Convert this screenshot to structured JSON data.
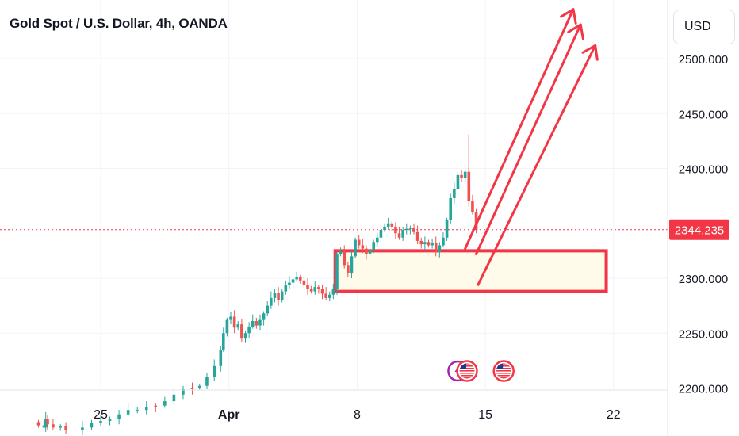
{
  "header": {
    "title": "Gold Spot / U.S. Dollar, 4h, OANDA",
    "currency_button": "USD"
  },
  "colors": {
    "up": "#26a69a",
    "down": "#ef5350",
    "drawing": "#f23645",
    "zone_fill": "#fffbea",
    "last_price_bg": "#f23645",
    "grid": "#f0f3fa"
  },
  "chart_data": {
    "type": "candlestick",
    "symbol": "Gold Spot / U.S. Dollar",
    "interval": "4h",
    "source": "OANDA",
    "currency": "USD",
    "y_ticks": [
      "2500.000",
      "2450.000",
      "2400.000",
      "2300.000",
      "2250.000",
      "2200.000"
    ],
    "ylim": [
      2197,
      2553
    ],
    "last_price": "2344.235",
    "x_ticks": [
      {
        "label": "25",
        "day": 25,
        "bold": false
      },
      {
        "label": "Apr",
        "day": 32,
        "bold": true
      },
      {
        "label": "8",
        "day": 39,
        "bold": false
      },
      {
        "label": "15",
        "day": 46,
        "bold": false
      },
      {
        "label": "22",
        "day": 53,
        "bold": false
      }
    ],
    "x_axis_note": "day index counted from March 1 (Mar 25 = 25, Apr 1 = 32)",
    "series_close": [
      [
        21.6,
        2166,
        "down"
      ],
      [
        21.9,
        2164,
        "up"
      ],
      [
        22.0,
        2172,
        "up"
      ],
      [
        22.1,
        2167,
        "down"
      ],
      [
        22.4,
        2164,
        "down"
      ],
      [
        22.8,
        2165,
        "up"
      ],
      [
        23.1,
        2162,
        "down"
      ],
      [
        24.0,
        2164,
        "up"
      ],
      [
        24.5,
        2168,
        "up"
      ],
      [
        25.0,
        2170,
        "up"
      ],
      [
        25.5,
        2172,
        "up"
      ],
      [
        26.0,
        2176,
        "up"
      ],
      [
        26.5,
        2180,
        "up"
      ],
      [
        27.0,
        2180,
        "up"
      ],
      [
        27.5,
        2183,
        "up"
      ],
      [
        28.0,
        2184,
        "down"
      ],
      [
        28.5,
        2188,
        "up"
      ],
      [
        29.0,
        2194,
        "up"
      ],
      [
        29.5,
        2199,
        "up"
      ],
      [
        30.0,
        2200,
        "down"
      ],
      [
        30.4,
        2202,
        "up"
      ],
      [
        30.8,
        2210,
        "up"
      ],
      [
        31.2,
        2220,
        "up"
      ],
      [
        31.55,
        2235,
        "up"
      ],
      [
        31.7,
        2250,
        "up"
      ],
      [
        31.9,
        2262,
        "up"
      ],
      [
        32.1,
        2265,
        "up"
      ],
      [
        32.3,
        2255,
        "down"
      ],
      [
        32.5,
        2258,
        "up"
      ],
      [
        32.7,
        2245,
        "down"
      ],
      [
        32.9,
        2250,
        "up"
      ],
      [
        33.1,
        2256,
        "up"
      ],
      [
        33.3,
        2261,
        "up"
      ],
      [
        33.5,
        2257,
        "down"
      ],
      [
        33.7,
        2262,
        "up"
      ],
      [
        33.9,
        2268,
        "up"
      ],
      [
        34.1,
        2275,
        "up"
      ],
      [
        34.3,
        2282,
        "up"
      ],
      [
        34.5,
        2287,
        "up"
      ],
      [
        34.7,
        2280,
        "down"
      ],
      [
        34.9,
        2288,
        "up"
      ],
      [
        35.1,
        2294,
        "up"
      ],
      [
        35.3,
        2296,
        "up"
      ],
      [
        35.5,
        2299,
        "up"
      ],
      [
        35.7,
        2301,
        "up"
      ],
      [
        35.9,
        2298,
        "down"
      ],
      [
        36.1,
        2294,
        "down"
      ],
      [
        36.3,
        2290,
        "down"
      ],
      [
        36.5,
        2288,
        "down"
      ],
      [
        36.7,
        2292,
        "up"
      ],
      [
        36.9,
        2290,
        "down"
      ],
      [
        37.1,
        2286,
        "down"
      ],
      [
        37.3,
        2282,
        "down"
      ],
      [
        37.5,
        2285,
        "up"
      ],
      [
        37.7,
        2290,
        "up"
      ],
      [
        37.9,
        2322,
        "up"
      ],
      [
        38.1,
        2324,
        "up"
      ],
      [
        38.3,
        2312,
        "down"
      ],
      [
        38.5,
        2305,
        "down"
      ],
      [
        38.7,
        2320,
        "up"
      ],
      [
        38.9,
        2335,
        "up"
      ],
      [
        39.1,
        2330,
        "down"
      ],
      [
        39.3,
        2327,
        "down"
      ],
      [
        39.5,
        2322,
        "down"
      ],
      [
        39.7,
        2326,
        "up"
      ],
      [
        39.9,
        2333,
        "up"
      ],
      [
        40.1,
        2337,
        "up"
      ],
      [
        40.3,
        2344,
        "up"
      ],
      [
        40.5,
        2347,
        "up"
      ],
      [
        40.7,
        2350,
        "up"
      ],
      [
        40.9,
        2347,
        "down"
      ],
      [
        41.1,
        2341,
        "down"
      ],
      [
        41.3,
        2337,
        "down"
      ],
      [
        41.5,
        2344,
        "up"
      ],
      [
        41.7,
        2345,
        "up"
      ],
      [
        41.9,
        2346,
        "up"
      ],
      [
        42.1,
        2342,
        "down"
      ],
      [
        42.3,
        2334,
        "down"
      ],
      [
        42.5,
        2331,
        "down"
      ],
      [
        42.7,
        2333,
        "up"
      ],
      [
        42.9,
        2330,
        "down"
      ],
      [
        43.1,
        2332,
        "up"
      ],
      [
        43.3,
        2324,
        "down"
      ],
      [
        43.5,
        2330,
        "up"
      ],
      [
        43.7,
        2337,
        "up"
      ],
      [
        43.9,
        2353,
        "up"
      ],
      [
        44.1,
        2373,
        "up"
      ],
      [
        44.3,
        2381,
        "up"
      ],
      [
        44.5,
        2394,
        "up"
      ],
      [
        44.7,
        2391,
        "down"
      ],
      [
        44.9,
        2397,
        "up"
      ],
      [
        45.1,
        2370,
        "down"
      ],
      [
        45.3,
        2360,
        "down"
      ],
      [
        45.5,
        2344,
        "down"
      ]
    ],
    "drawings": {
      "zone": {
        "type": "rectangle",
        "x_from": 37.8,
        "x_to": 52.6,
        "y_top": 2325,
        "y_bottom": 2288
      },
      "arrows": [
        {
          "from": [
            44.9,
            2327
          ],
          "to": [
            50.8,
            2545
          ]
        },
        {
          "from": [
            45.5,
            2322
          ],
          "to": [
            51.2,
            2531
          ]
        },
        {
          "from": [
            45.6,
            2294
          ],
          "to": [
            52.0,
            2512
          ]
        }
      ],
      "event_markers": [
        {
          "day": 44.5,
          "icon": "lightning-event-icon"
        },
        {
          "day": 45.0,
          "icon": "us-flag-icon"
        },
        {
          "day": 47.0,
          "icon": "us-flag-icon"
        }
      ]
    }
  }
}
